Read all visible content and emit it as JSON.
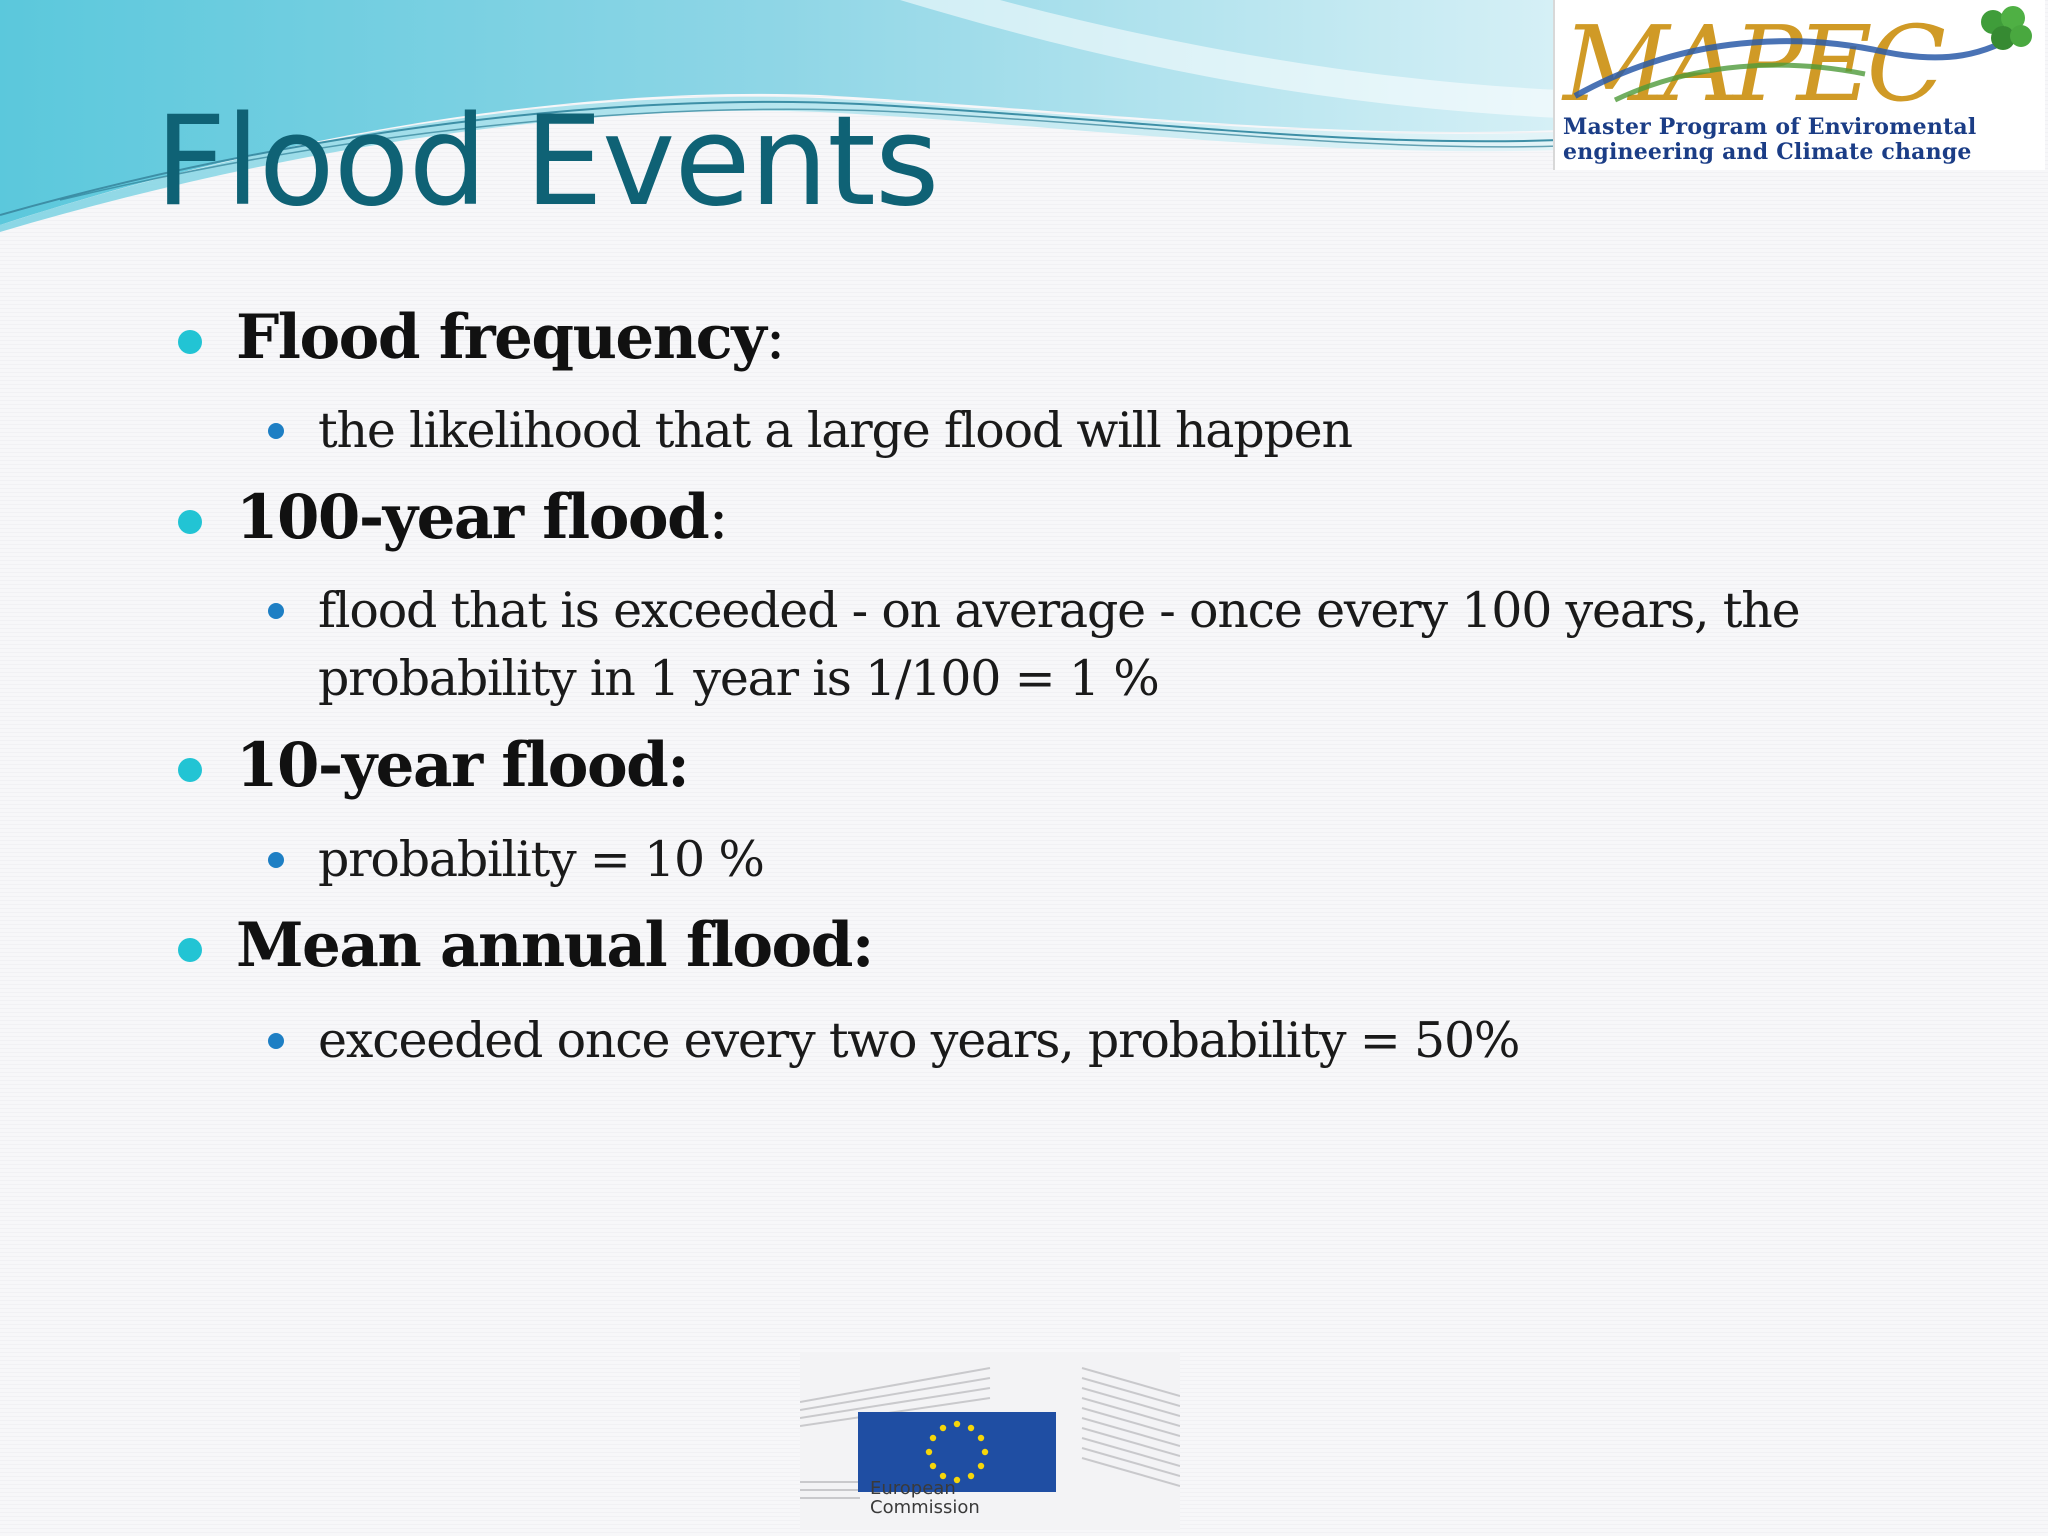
{
  "slide": {
    "title": "Flood Events",
    "logo": {
      "wordmark": "MAPEC",
      "tagline_1": "Master Program of Enviromental",
      "tagline_2": "engineering and Climate change"
    },
    "bullets": [
      {
        "heading": "Flood frequency",
        "heading_suffix": ":",
        "sub": [
          "the likelihood that a large flood will happen"
        ]
      },
      {
        "heading": "100-year flood",
        "heading_suffix": ":",
        "sub": [
          "flood that is exceeded - on average - once every 100 years, the",
          "probability in 1 year is 1/100 = 1 %"
        ]
      },
      {
        "heading": "10-year flood:",
        "heading_suffix": "",
        "sub": [
          "probability = 10 %"
        ]
      },
      {
        "heading": "Mean annual flood:",
        "heading_suffix": "",
        "sub": [
          "exceeded once every two years, probability = 50%"
        ]
      }
    ],
    "footer_logo": {
      "line_1": "European",
      "line_2": "Commission"
    },
    "colors": {
      "title": "#0f6275",
      "bullet_level1": "#22c4d4",
      "bullet_level2": "#1e7fc4",
      "logo_text": "#1b3d86",
      "eu_blue": "#1f4ea3",
      "eu_star": "#f5d60a"
    }
  }
}
